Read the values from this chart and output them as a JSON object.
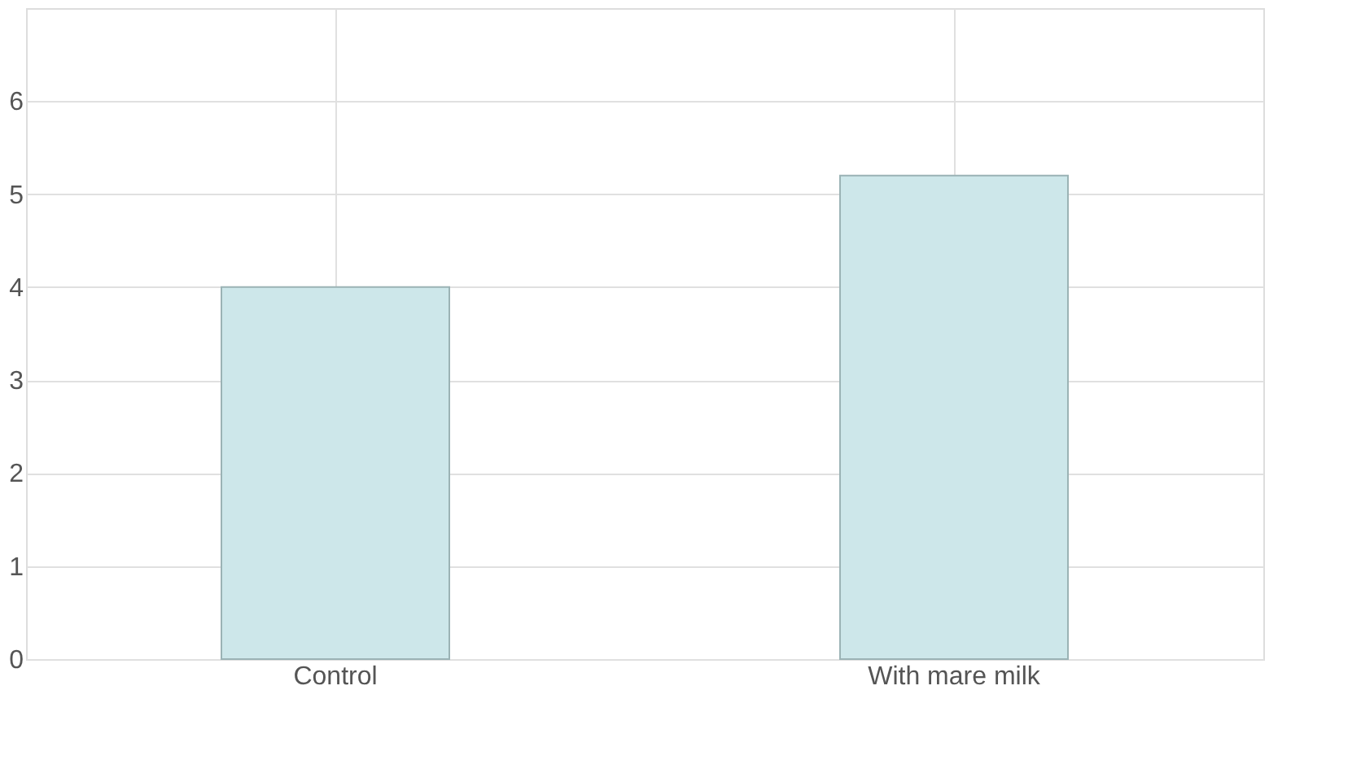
{
  "chart_data": {
    "type": "bar",
    "categories": [
      "Control",
      "With mare milk"
    ],
    "values": [
      4.0,
      5.2
    ],
    "color": "#cde7ea",
    "ylim": [
      0,
      7
    ],
    "yticks": [
      0,
      1,
      2,
      3,
      4,
      5,
      6
    ],
    "grid": true
  }
}
